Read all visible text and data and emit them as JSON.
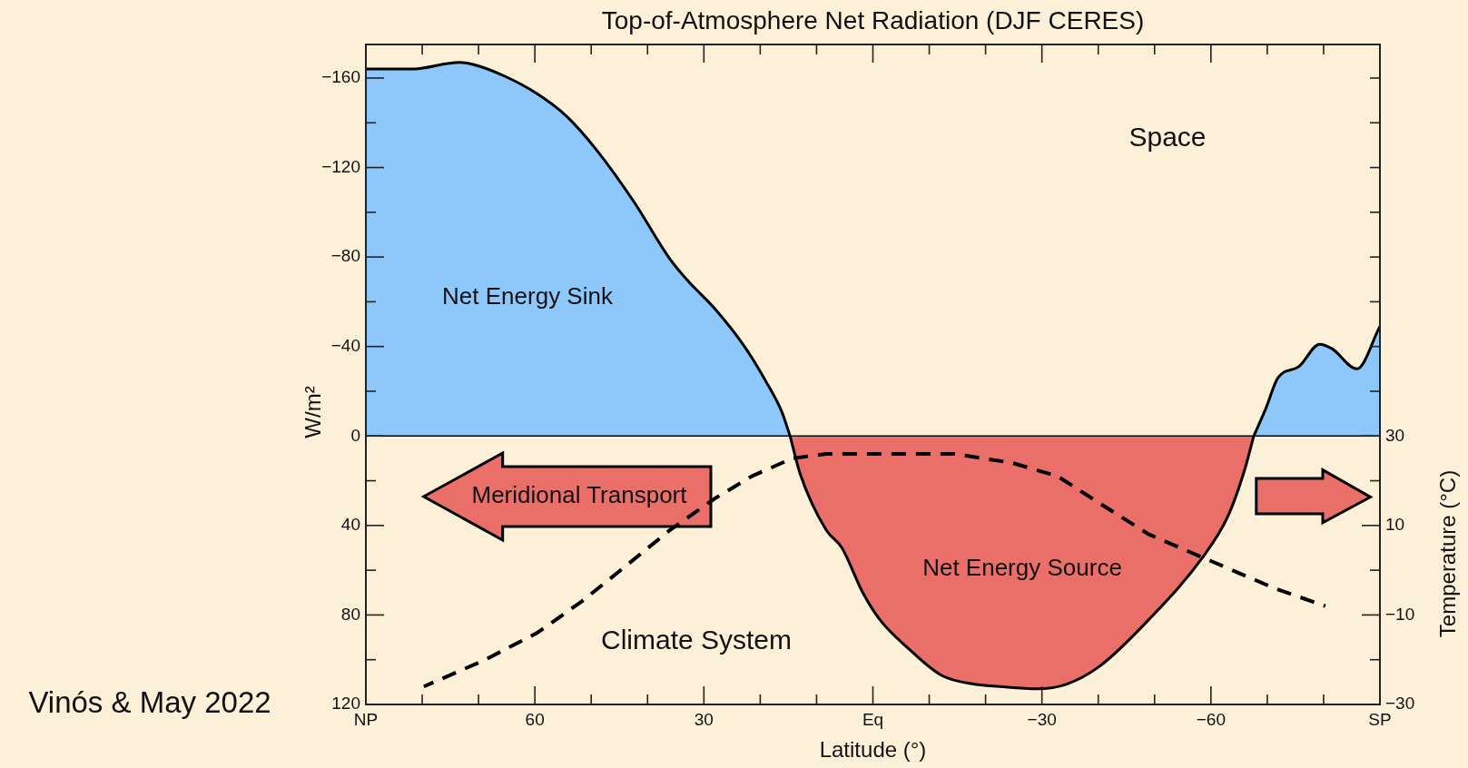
{
  "chart_data": {
    "type": "area",
    "title": "Top-of-Atmosphere Net Radiation (DJF CERES)",
    "xlabel": "Latitude (°)",
    "ylabel": "W/m²",
    "y2label": "Temperature (°C)",
    "series": [
      {
        "type": "area",
        "color": "#8ec8fb",
        "x": [
          90,
          82,
          73.4,
          70.8,
          65.5,
          59.6,
          54.4,
          49.1,
          42.5,
          36,
          32.7,
          28.1,
          22.8,
          18.9,
          16.2,
          14.7
        ],
        "values": [
          -164,
          -164,
          -167,
          -166,
          -161,
          -153,
          -143,
          -128,
          -105,
          -79,
          -69,
          -57,
          -40,
          -24,
          -11,
          0
        ]
      },
      {
        "type": "area",
        "color": "#ea6f68",
        "x": [
          14.7,
          12.9,
          8.3,
          5.5,
          1.8,
          -1.2,
          -6.3,
          -12.2,
          -18.1,
          -22.5,
          -29.1,
          -34.3,
          -40.2,
          -49,
          -58.6,
          -63,
          -66,
          -67.6
        ],
        "values": [
          0,
          17,
          42,
          50,
          70,
          82,
          95,
          107,
          111,
          112,
          113,
          111,
          103,
          82,
          54,
          36,
          15,
          0
        ]
      },
      {
        "type": "area",
        "color": "#8ec8fb",
        "x": [
          -67.6,
          -69.7,
          -71.9,
          -75.6,
          -79.3,
          -81.5,
          -85.9,
          -90
        ],
        "values": [
          0,
          -12,
          -26,
          -31,
          -41,
          -39,
          -30,
          -49
        ]
      },
      {
        "type": "line",
        "axis": "y2",
        "color": "#000000",
        "line_style": "dashed",
        "marker": "none",
        "x": [
          79.7,
          68.8,
          59.6,
          51.7,
          43.8,
          36,
          28.1,
          21.5,
          14.3,
          8.3,
          -4.8,
          -14.4,
          -24.7,
          -32.8,
          -40.2,
          -49,
          -60.1,
          -71.2,
          -80.3
        ],
        "values": [
          -26,
          -20,
          -14,
          -7,
          1,
          9,
          16,
          21,
          25,
          26,
          26,
          26,
          24,
          21,
          15,
          8,
          2,
          -4,
          -8
        ]
      }
    ],
    "xlim": [
      90,
      -90
    ],
    "ylim": [
      120,
      -175
    ],
    "y2lim": [
      -30,
      117.5
    ],
    "xticks": [
      {
        "value": 90,
        "label": "NP"
      },
      {
        "value": 80,
        "label": null
      },
      {
        "value": 70,
        "label": null
      },
      60,
      {
        "value": 50,
        "label": null
      },
      {
        "value": 40,
        "label": null
      },
      30,
      {
        "value": 20,
        "label": null
      },
      {
        "value": 10,
        "label": null
      },
      {
        "value": 0,
        "label": "Eq"
      },
      {
        "value": -10,
        "label": null
      },
      {
        "value": -20,
        "label": null
      },
      {
        "value": -30,
        "label": "−30"
      },
      {
        "value": -40,
        "label": null
      },
      {
        "value": -50,
        "label": null
      },
      {
        "value": -60,
        "label": "−60"
      },
      {
        "value": -70,
        "label": null
      },
      {
        "value": -80,
        "label": null
      },
      {
        "value": -90,
        "label": "SP"
      }
    ],
    "yticks": [
      {
        "value": -160,
        "label": "−160"
      },
      {
        "value": -140,
        "label": null
      },
      {
        "value": -120,
        "label": "−120"
      },
      {
        "value": -100,
        "label": null
      },
      {
        "value": -80,
        "label": "−80"
      },
      {
        "value": -60,
        "label": null
      },
      {
        "value": -40,
        "label": "−40"
      },
      {
        "value": -20,
        "label": null
      },
      0,
      {
        "value": 20,
        "label": null
      },
      40,
      {
        "value": 60,
        "label": null
      },
      80,
      {
        "value": 100,
        "label": null
      },
      120
    ],
    "y2ticks": [
      {
        "value": 110,
        "label": null
      },
      {
        "value": 100,
        "label": null
      },
      {
        "value": 90,
        "label": null
      },
      {
        "value": 80,
        "label": null
      },
      {
        "value": 70,
        "label": null
      },
      {
        "value": 60,
        "label": null
      },
      {
        "value": 50,
        "label": null
      },
      {
        "value": 40,
        "label": null
      },
      30,
      {
        "value": 20,
        "label": null
      },
      10,
      {
        "value": 0,
        "label": null
      },
      {
        "value": -10,
        "label": "−10"
      },
      {
        "value": -20,
        "label": null
      },
      {
        "value": -30,
        "label": "−30"
      }
    ],
    "ref_lines": [
      {
        "axis": "y",
        "value": 0,
        "color": "#000000"
      }
    ],
    "annotations": [
      "Space",
      "Net Energy Sink",
      "Net Energy Source",
      "Climate System",
      "Meridional Transport",
      "Vinós & May 2022"
    ]
  }
}
